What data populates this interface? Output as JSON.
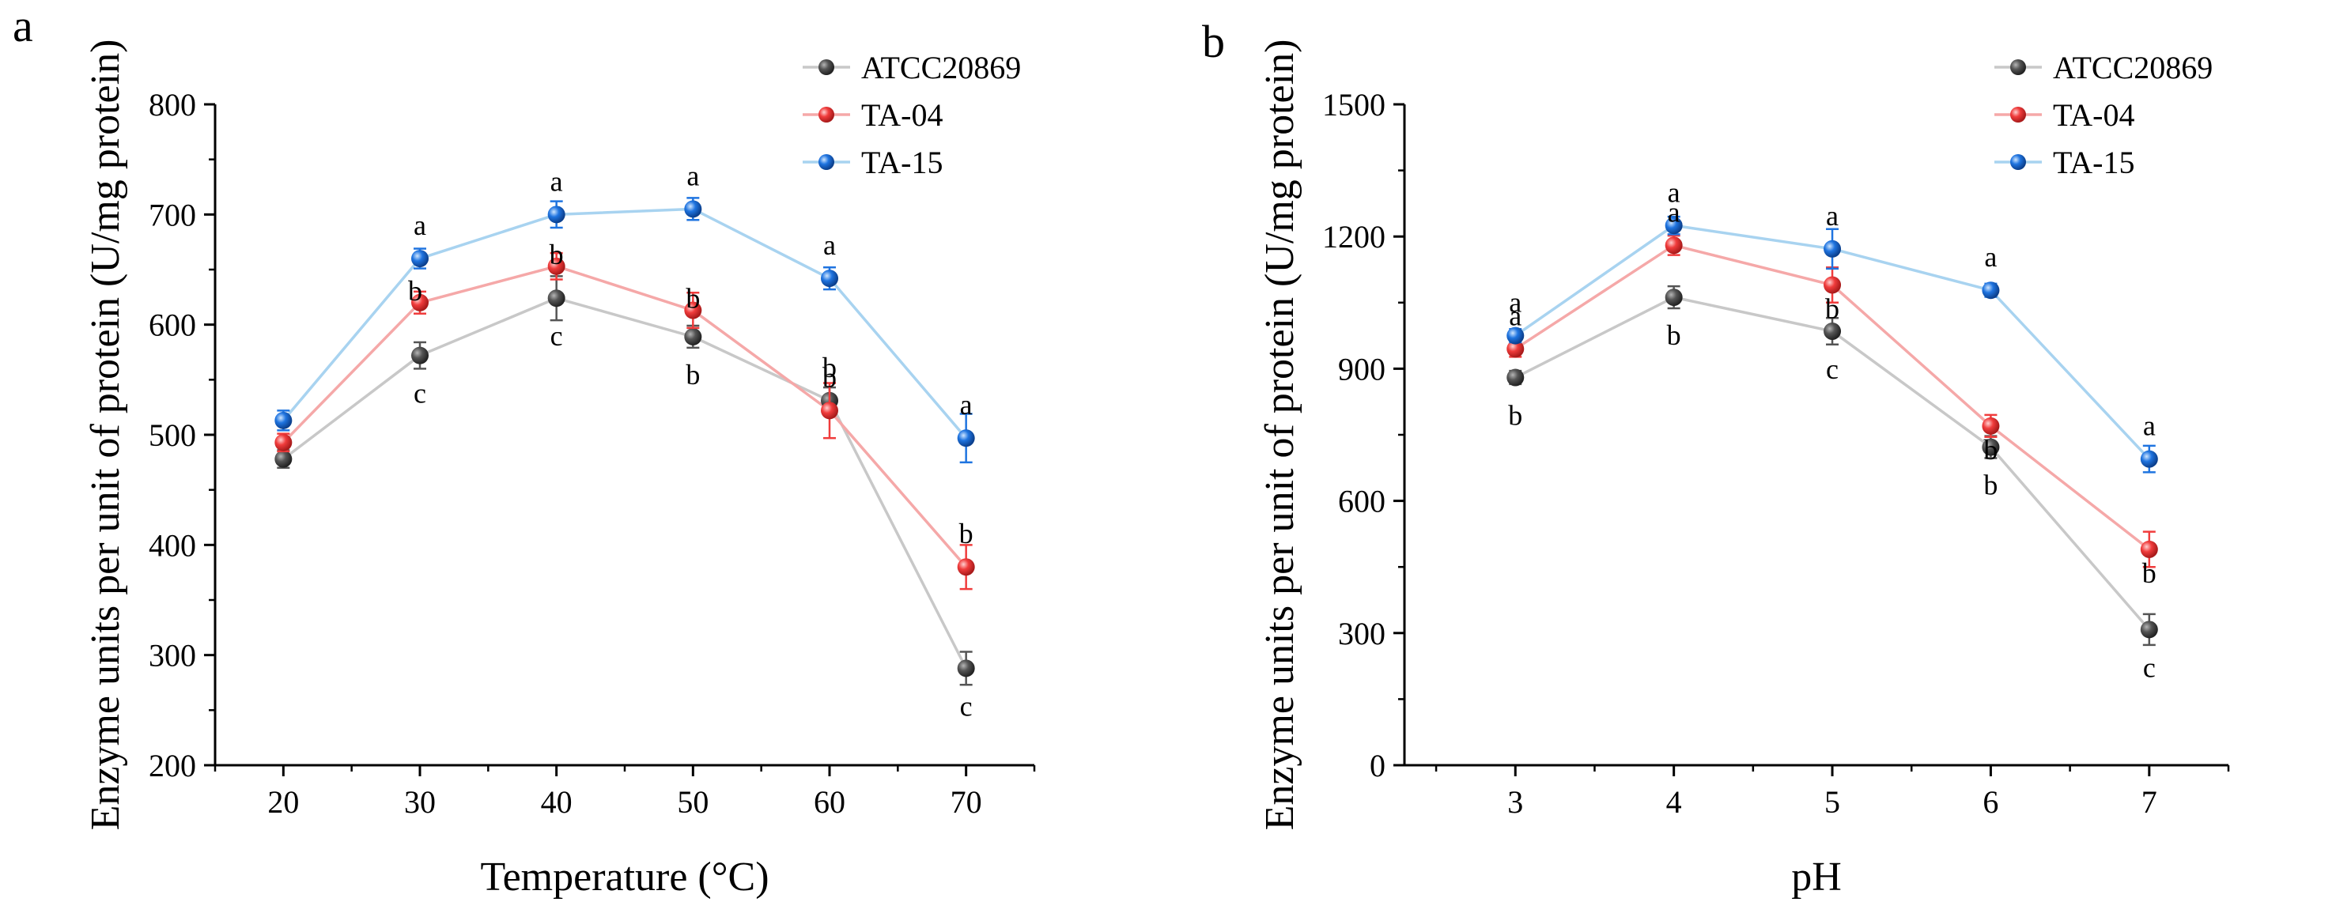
{
  "chart_data": [
    {
      "type": "line",
      "panel_label": "a",
      "xlabel": "Temperature (°C)",
      "ylabel": "Enzyme units per unit of protein (U/mg protein)",
      "x": [
        20,
        30,
        40,
        50,
        60,
        70
      ],
      "xlim": [
        15,
        75
      ],
      "ylim": [
        200,
        800
      ],
      "xticks": [
        "20",
        "30",
        "40",
        "50",
        "60",
        "70"
      ],
      "yticks": [
        "200",
        "300",
        "400",
        "500",
        "600",
        "700",
        "800"
      ],
      "legend_position": "top-right",
      "grid": false,
      "series": [
        {
          "name": "ATCC20869",
          "color": "#555555",
          "line_color": "#c8c8c8",
          "values": [
            478,
            572,
            624,
            589,
            531,
            288
          ],
          "errors": [
            8,
            12,
            20,
            10,
            12,
            15
          ],
          "letters": [
            "",
            "c",
            "c",
            "b",
            "b",
            "c"
          ]
        },
        {
          "name": "TA-04",
          "color": "#f03c3c",
          "line_color": "#f5a8a8",
          "values": [
            493,
            620,
            653,
            613,
            522,
            380
          ],
          "errors": [
            8,
            10,
            12,
            16,
            25,
            20
          ],
          "letters": [
            "",
            "b",
            "b",
            "b",
            "b",
            "b"
          ]
        },
        {
          "name": "TA-15",
          "color": "#1f74e0",
          "line_color": "#a8d3f0",
          "values": [
            513,
            660,
            700,
            705,
            642,
            497
          ],
          "errors": [
            9,
            9,
            12,
            10,
            10,
            22
          ],
          "letters": [
            "",
            "a",
            "a",
            "a",
            "a",
            "a"
          ]
        }
      ]
    },
    {
      "type": "line",
      "panel_label": "b",
      "xlabel": "pH",
      "ylabel": "Enzyme units per unit of protein (U/mg protein)",
      "x": [
        3,
        4,
        5,
        6,
        7
      ],
      "xlim": [
        2.3,
        7.5
      ],
      "ylim": [
        0,
        1500
      ],
      "xticks": [
        "3",
        "4",
        "5",
        "6",
        "7"
      ],
      "yticks": [
        "0",
        "300",
        "600",
        "900",
        "1200",
        "1500"
      ],
      "legend_position": "top-right",
      "grid": false,
      "series": [
        {
          "name": "ATCC20869",
          "color": "#555555",
          "line_color": "#c8c8c8",
          "values": [
            880,
            1062,
            985,
            722,
            308
          ],
          "errors": [
            15,
            25,
            30,
            25,
            35
          ],
          "letters": [
            "b",
            "b",
            "c",
            "b",
            "c"
          ]
        },
        {
          "name": "TA-04",
          "color": "#f03c3c",
          "line_color": "#f5a8a8",
          "values": [
            945,
            1180,
            1090,
            770,
            490
          ],
          "errors": [
            18,
            22,
            40,
            25,
            40
          ],
          "letters": [
            "a",
            "a",
            "b",
            "b",
            "b"
          ]
        },
        {
          "name": "TA-15",
          "color": "#1f74e0",
          "line_color": "#a8d3f0",
          "values": [
            975,
            1225,
            1172,
            1078,
            695
          ],
          "errors": [
            15,
            20,
            45,
            15,
            30
          ],
          "letters": [
            "a",
            "a",
            "a",
            "a",
            "a"
          ]
        }
      ]
    }
  ]
}
